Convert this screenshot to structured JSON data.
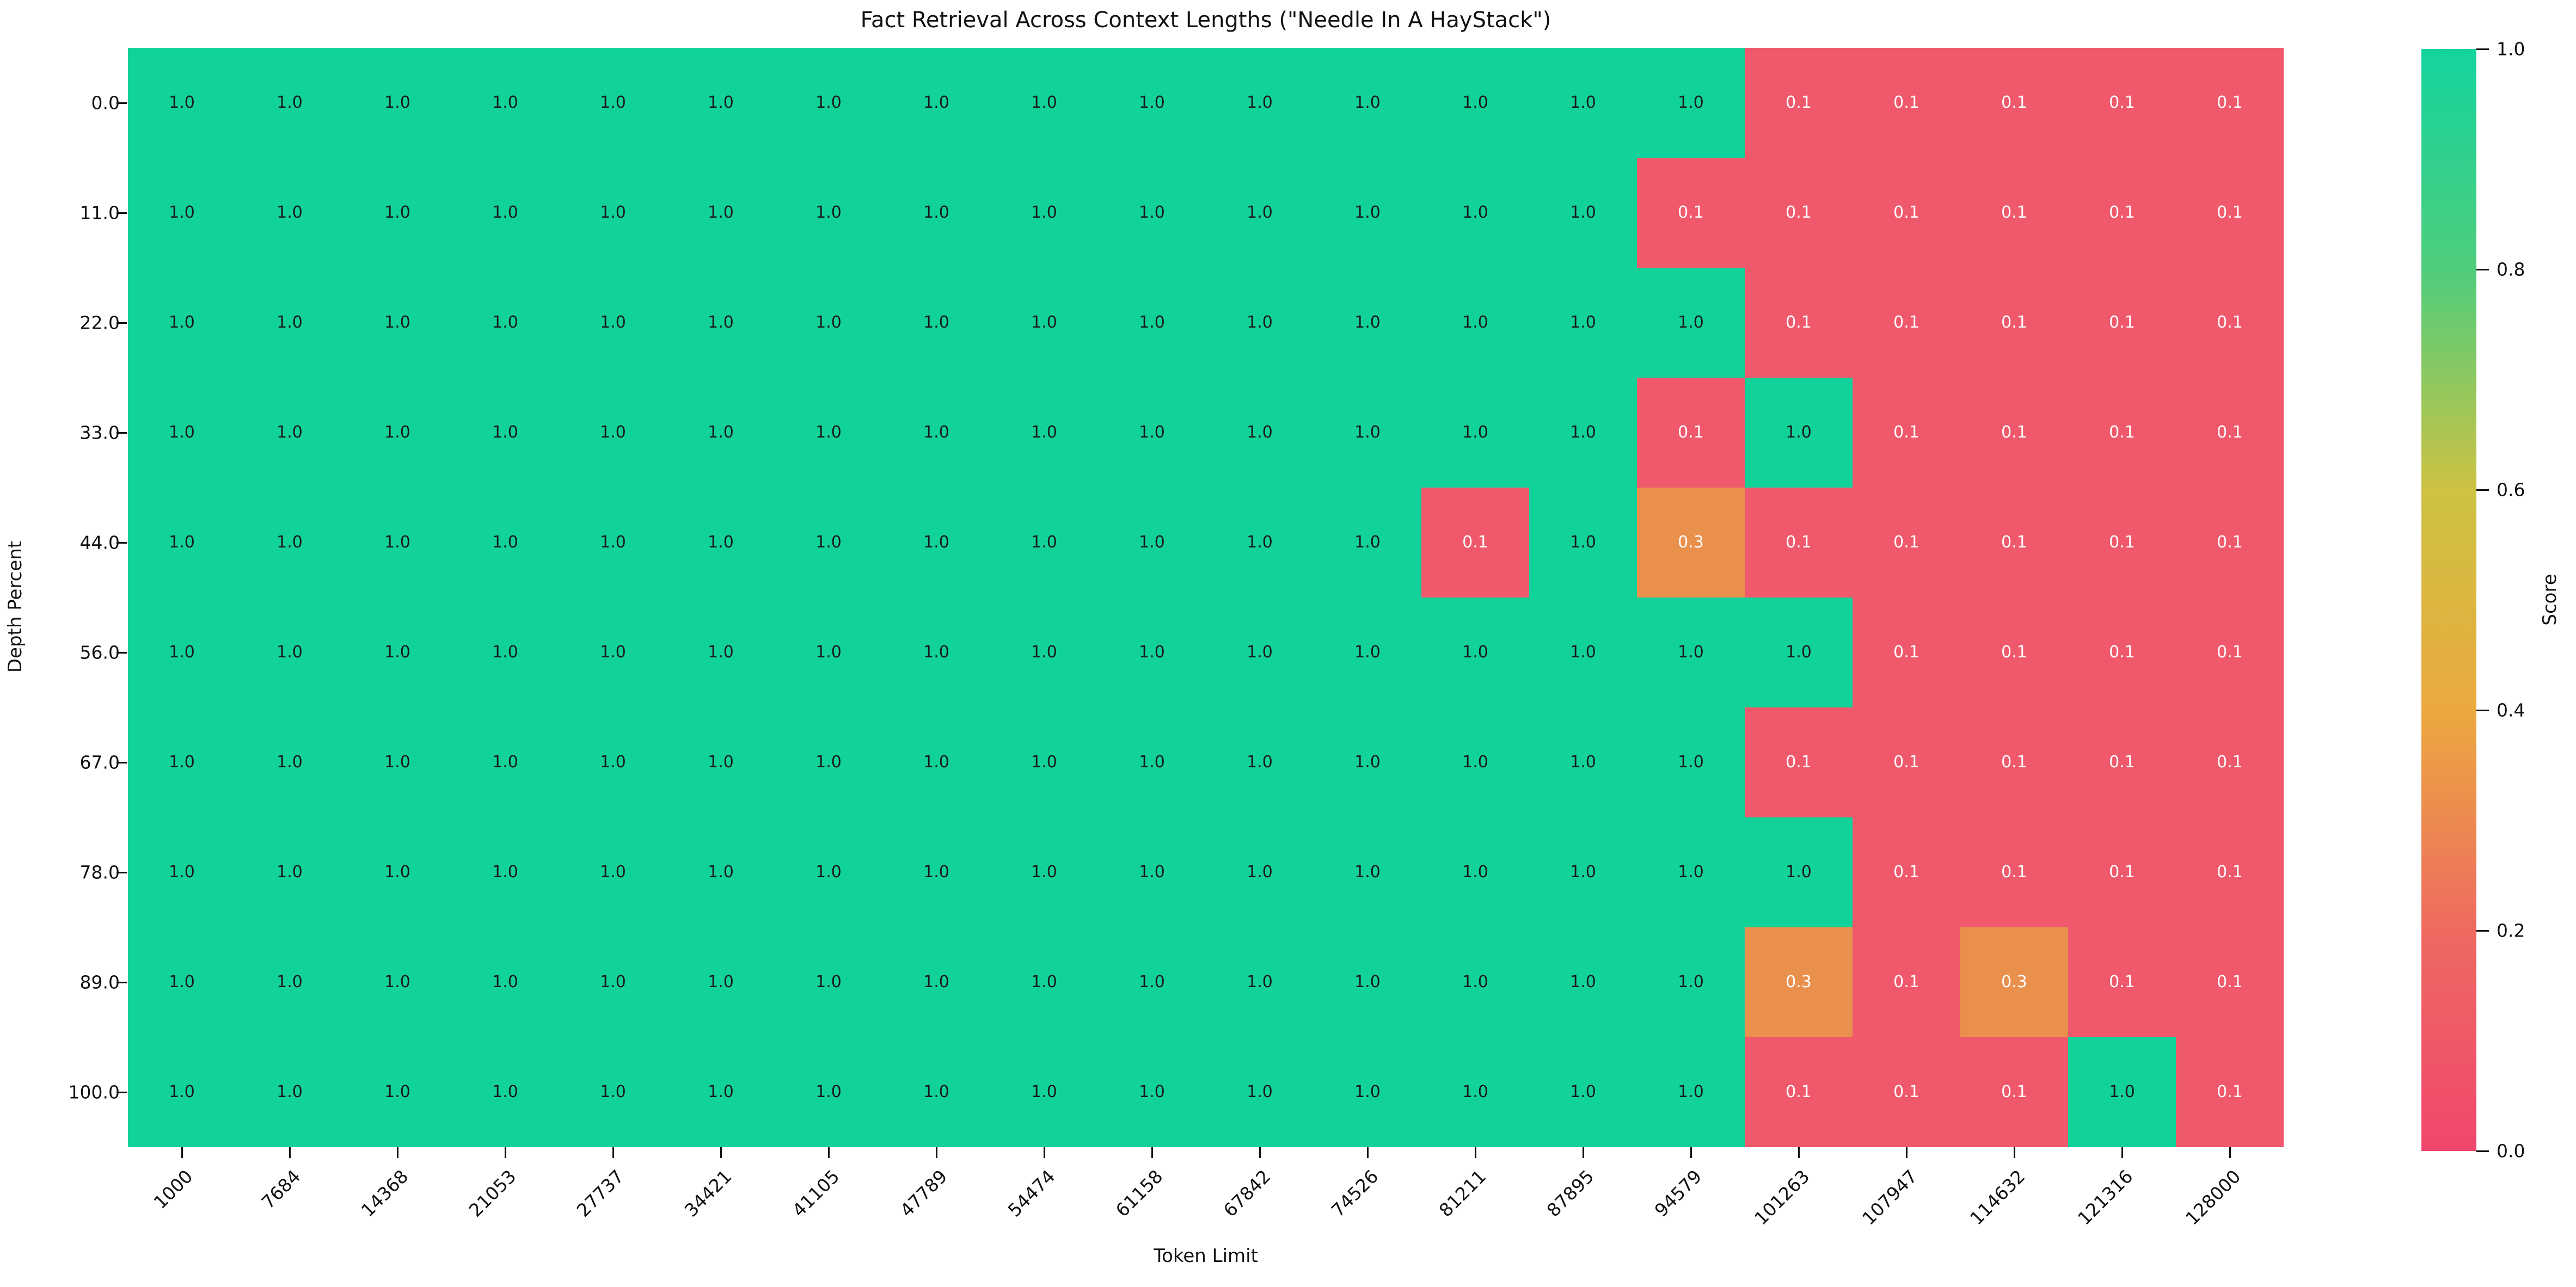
{
  "title": "Fact Retrieval Across Context Lengths (\"Needle In A HayStack\")",
  "chart_data": {
    "type": "heatmap",
    "title": "Fact Retrieval Across Context Lengths (\"Needle In A HayStack\")",
    "xlabel": "Token Limit",
    "ylabel": "Depth Percent",
    "x_categories": [
      "1000",
      "7684",
      "14368",
      "21053",
      "27737",
      "34421",
      "41105",
      "47789",
      "54474",
      "61158",
      "67842",
      "74526",
      "81211",
      "87895",
      "94579",
      "101263",
      "107947",
      "114632",
      "121316",
      "128000"
    ],
    "y_categories": [
      "0.0",
      "11.0",
      "22.0",
      "33.0",
      "44.0",
      "56.0",
      "67.0",
      "78.0",
      "89.0",
      "100.0"
    ],
    "values": [
      [
        "1.0",
        "1.0",
        "1.0",
        "1.0",
        "1.0",
        "1.0",
        "1.0",
        "1.0",
        "1.0",
        "1.0",
        "1.0",
        "1.0",
        "1.0",
        "1.0",
        "1.0",
        "0.1",
        "0.1",
        "0.1",
        "0.1",
        "0.1"
      ],
      [
        "1.0",
        "1.0",
        "1.0",
        "1.0",
        "1.0",
        "1.0",
        "1.0",
        "1.0",
        "1.0",
        "1.0",
        "1.0",
        "1.0",
        "1.0",
        "1.0",
        "0.1",
        "0.1",
        "0.1",
        "0.1",
        "0.1",
        "0.1"
      ],
      [
        "1.0",
        "1.0",
        "1.0",
        "1.0",
        "1.0",
        "1.0",
        "1.0",
        "1.0",
        "1.0",
        "1.0",
        "1.0",
        "1.0",
        "1.0",
        "1.0",
        "1.0",
        "0.1",
        "0.1",
        "0.1",
        "0.1",
        "0.1"
      ],
      [
        "1.0",
        "1.0",
        "1.0",
        "1.0",
        "1.0",
        "1.0",
        "1.0",
        "1.0",
        "1.0",
        "1.0",
        "1.0",
        "1.0",
        "1.0",
        "1.0",
        "0.1",
        "1.0",
        "0.1",
        "0.1",
        "0.1",
        "0.1"
      ],
      [
        "1.0",
        "1.0",
        "1.0",
        "1.0",
        "1.0",
        "1.0",
        "1.0",
        "1.0",
        "1.0",
        "1.0",
        "1.0",
        "1.0",
        "0.1",
        "1.0",
        "0.3",
        "0.1",
        "0.1",
        "0.1",
        "0.1",
        "0.1"
      ],
      [
        "1.0",
        "1.0",
        "1.0",
        "1.0",
        "1.0",
        "1.0",
        "1.0",
        "1.0",
        "1.0",
        "1.0",
        "1.0",
        "1.0",
        "1.0",
        "1.0",
        "1.0",
        "1.0",
        "0.1",
        "0.1",
        "0.1",
        "0.1"
      ],
      [
        "1.0",
        "1.0",
        "1.0",
        "1.0",
        "1.0",
        "1.0",
        "1.0",
        "1.0",
        "1.0",
        "1.0",
        "1.0",
        "1.0",
        "1.0",
        "1.0",
        "1.0",
        "0.1",
        "0.1",
        "0.1",
        "0.1",
        "0.1"
      ],
      [
        "1.0",
        "1.0",
        "1.0",
        "1.0",
        "1.0",
        "1.0",
        "1.0",
        "1.0",
        "1.0",
        "1.0",
        "1.0",
        "1.0",
        "1.0",
        "1.0",
        "1.0",
        "1.0",
        "0.1",
        "0.1",
        "0.1",
        "0.1"
      ],
      [
        "1.0",
        "1.0",
        "1.0",
        "1.0",
        "1.0",
        "1.0",
        "1.0",
        "1.0",
        "1.0",
        "1.0",
        "1.0",
        "1.0",
        "1.0",
        "1.0",
        "1.0",
        "0.3",
        "0.1",
        "0.3",
        "0.1",
        "0.1"
      ],
      [
        "1.0",
        "1.0",
        "1.0",
        "1.0",
        "1.0",
        "1.0",
        "1.0",
        "1.0",
        "1.0",
        "1.0",
        "1.0",
        "1.0",
        "1.0",
        "1.0",
        "1.0",
        "0.1",
        "0.1",
        "0.1",
        "1.0",
        "0.1"
      ]
    ],
    "value_styles": {
      "1.0": {
        "bg": "#11d39a",
        "fg": "#1a1a1a"
      },
      "0.3": {
        "bg": "#ea904d",
        "fg": "#ffffff"
      },
      "0.1": {
        "bg": "#f0586c",
        "fg": "#ffffff"
      }
    },
    "colorbar": {
      "label": "Score",
      "tick_labels": [
        "1.0",
        "0.8",
        "0.6",
        "0.4",
        "0.2",
        "0.0"
      ],
      "min": 0.0,
      "max": 1.0,
      "gradient_bottom_to_top": [
        "#f0466e",
        "#ee6a60",
        "#eba93f",
        "#cdc243",
        "#4fcd7c",
        "#13d49e"
      ]
    },
    "grid": false,
    "legend_position": "right-colorbar"
  }
}
